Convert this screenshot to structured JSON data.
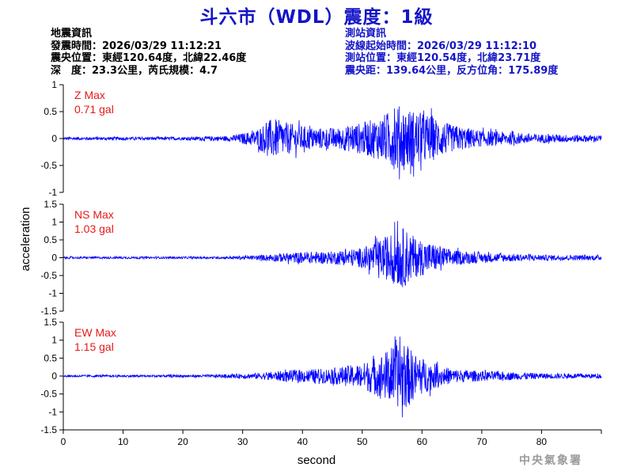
{
  "header": {
    "title": "斗六市（WDL）震度：1級",
    "earthquake_info": {
      "heading": "地震資訊",
      "origin_time": "發震時間：2026/03/29 11:12:21",
      "epicenter": "震央位置：東經120.64度，北緯22.46度",
      "depth_magnitude": "深　度：23.3公里，芮氏規模：4.7"
    },
    "station_info": {
      "heading": "測站資訊",
      "wave_start": "波線起始時間：2026/03/29 11:12:10",
      "station_location": "測站位置：東經120.54度，北緯23.71度",
      "distance_azimuth": "震央距：139.64公里，反方位角：175.89度"
    }
  },
  "footer": {
    "agency": "中央氣象署"
  },
  "colors": {
    "trace": "#0000ff",
    "max_label": "#e61919",
    "title": "#1414c8",
    "axis": "#000000"
  },
  "chart_data": {
    "type": "line",
    "xlabel": "second",
    "ylabel": "acceleration",
    "xlim": [
      0,
      90
    ],
    "xticks": [
      0,
      10,
      20,
      30,
      40,
      50,
      60,
      70,
      80
    ],
    "x_end": 90,
    "panels": [
      {
        "name": "Z",
        "max_label": "Z Max",
        "max_value": "0.71 gal",
        "ylim": [
          -1,
          1
        ],
        "yticks": [
          -1,
          -0.5,
          0,
          0.5,
          1
        ],
        "envelope": [
          [
            0,
            0.03
          ],
          [
            10,
            0.03
          ],
          [
            20,
            0.03
          ],
          [
            28,
            0.05
          ],
          [
            32,
            0.15
          ],
          [
            35,
            0.38
          ],
          [
            38,
            0.28
          ],
          [
            42,
            0.2
          ],
          [
            46,
            0.2
          ],
          [
            50,
            0.3
          ],
          [
            53,
            0.4
          ],
          [
            56,
            0.62
          ],
          [
            58,
            0.55
          ],
          [
            61,
            0.45
          ],
          [
            65,
            0.25
          ],
          [
            70,
            0.15
          ],
          [
            80,
            0.08
          ],
          [
            90,
            0.06
          ]
        ],
        "peaks": [
          {
            "x": 55.4,
            "y": 0.56
          },
          {
            "x": 58.6,
            "y": -0.71
          },
          {
            "x": 58.1,
            "y": -0.66
          },
          {
            "x": 60.3,
            "y": 0.52
          }
        ]
      },
      {
        "name": "NS",
        "max_label": "NS Max",
        "max_value": "1.03 gal",
        "ylim": [
          -1.5,
          1.5
        ],
        "yticks": [
          -1.5,
          -1,
          -0.5,
          0,
          0.5,
          1,
          1.5
        ],
        "envelope": [
          [
            0,
            0.03
          ],
          [
            10,
            0.03
          ],
          [
            25,
            0.03
          ],
          [
            32,
            0.06
          ],
          [
            36,
            0.12
          ],
          [
            40,
            0.16
          ],
          [
            45,
            0.18
          ],
          [
            50,
            0.28
          ],
          [
            53,
            0.5
          ],
          [
            55,
            0.72
          ],
          [
            57,
            0.85
          ],
          [
            59,
            0.55
          ],
          [
            62,
            0.4
          ],
          [
            65,
            0.22
          ],
          [
            70,
            0.14
          ],
          [
            80,
            0.08
          ],
          [
            90,
            0.07
          ]
        ],
        "peaks": [
          {
            "x": 55.9,
            "y": 1.03
          },
          {
            "x": 56.4,
            "y": -0.75
          },
          {
            "x": 54.8,
            "y": 0.62
          },
          {
            "x": 57.4,
            "y": -0.55
          }
        ]
      },
      {
        "name": "EW",
        "max_label": "EW Max",
        "max_value": "1.15 gal",
        "ylim": [
          -1.5,
          1.5
        ],
        "yticks": [
          -1.5,
          -1,
          -0.5,
          0,
          0.5,
          1,
          1.5
        ],
        "envelope": [
          [
            0,
            0.03
          ],
          [
            10,
            0.03
          ],
          [
            25,
            0.04
          ],
          [
            32,
            0.08
          ],
          [
            36,
            0.14
          ],
          [
            40,
            0.18
          ],
          [
            45,
            0.22
          ],
          [
            50,
            0.35
          ],
          [
            53,
            0.6
          ],
          [
            55,
            0.8
          ],
          [
            57,
            0.95
          ],
          [
            59,
            0.6
          ],
          [
            62,
            0.35
          ],
          [
            65,
            0.2
          ],
          [
            70,
            0.14
          ],
          [
            80,
            0.08
          ],
          [
            90,
            0.06
          ]
        ],
        "peaks": [
          {
            "x": 56.3,
            "y": 1.1
          },
          {
            "x": 56.7,
            "y": -1.15
          },
          {
            "x": 54.9,
            "y": 0.78
          },
          {
            "x": 57.9,
            "y": -0.8
          }
        ]
      }
    ]
  }
}
